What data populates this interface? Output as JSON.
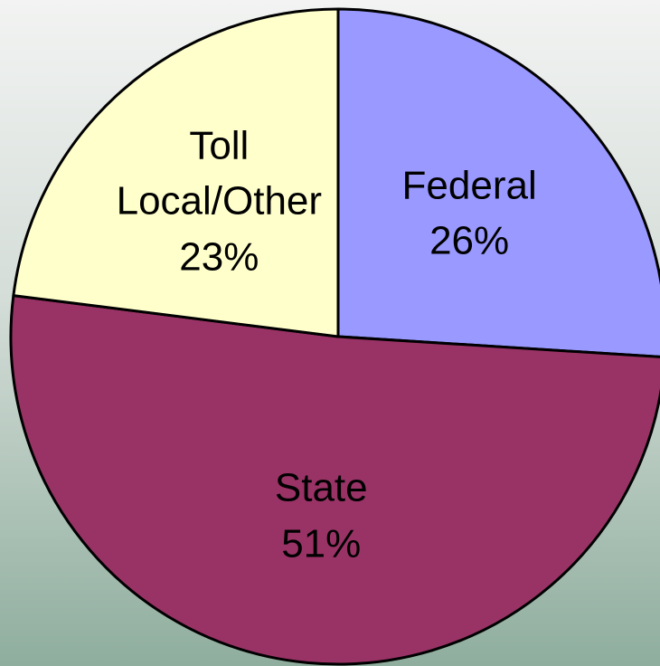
{
  "chart_data": {
    "type": "pie",
    "categories": [
      "Federal",
      "State",
      "Toll\nLocal/Other"
    ],
    "values": [
      26,
      51,
      23
    ],
    "value_labels": [
      "26%",
      "51%",
      "23%"
    ],
    "colors": [
      "#9999ff",
      "#993366",
      "#ffffcc"
    ]
  }
}
